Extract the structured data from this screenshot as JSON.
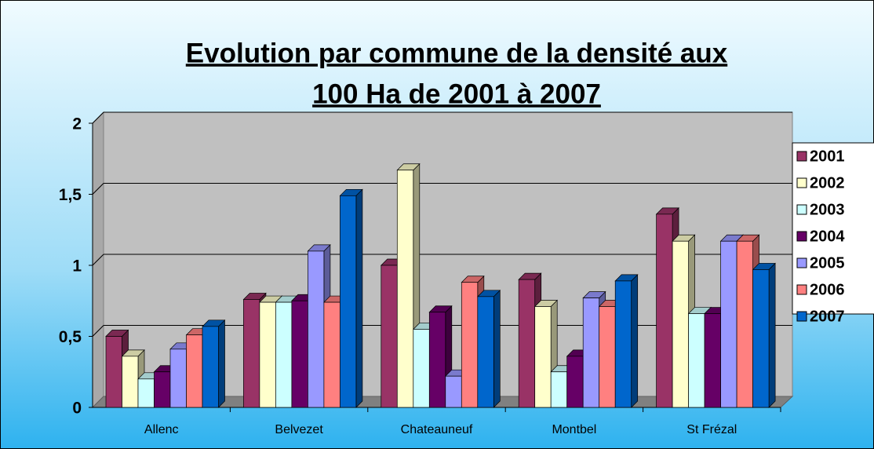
{
  "chart_data": {
    "type": "bar3d",
    "title": [
      "Evolution par commune de la densité aux",
      "100 Ha de 2001 à 2007"
    ],
    "categories": [
      "Allenc",
      "Belvezet",
      "Chateauneuf",
      "Montbel",
      "St Frézal"
    ],
    "series": [
      {
        "name": "2001",
        "color": "#993366",
        "values": [
          0.5,
          0.76,
          1.0,
          0.9,
          1.36
        ]
      },
      {
        "name": "2002",
        "color": "#ffffcc",
        "values": [
          0.36,
          0.74,
          1.67,
          0.71,
          1.17
        ]
      },
      {
        "name": "2003",
        "color": "#ccffff",
        "values": [
          0.2,
          0.74,
          0.55,
          0.25,
          0.66
        ]
      },
      {
        "name": "2004",
        "color": "#660066",
        "values": [
          0.25,
          0.75,
          0.67,
          0.36,
          0.66
        ]
      },
      {
        "name": "2005",
        "color": "#9999ff",
        "values": [
          0.41,
          1.1,
          0.22,
          0.77,
          1.17
        ]
      },
      {
        "name": "2006",
        "color": "#ff8080",
        "values": [
          0.51,
          0.74,
          0.88,
          0.71,
          1.17
        ]
      },
      {
        "name": "2007",
        "color": "#0066cc",
        "values": [
          0.57,
          1.49,
          0.78,
          0.89,
          0.97
        ]
      }
    ],
    "ylim": [
      0,
      2
    ],
    "yticks": [
      0,
      {
        "value": 0.5,
        "label": "0,5"
      },
      1,
      {
        "value": 1.5,
        "label": "1,5"
      },
      2
    ],
    "grid": true,
    "legend": "right"
  }
}
